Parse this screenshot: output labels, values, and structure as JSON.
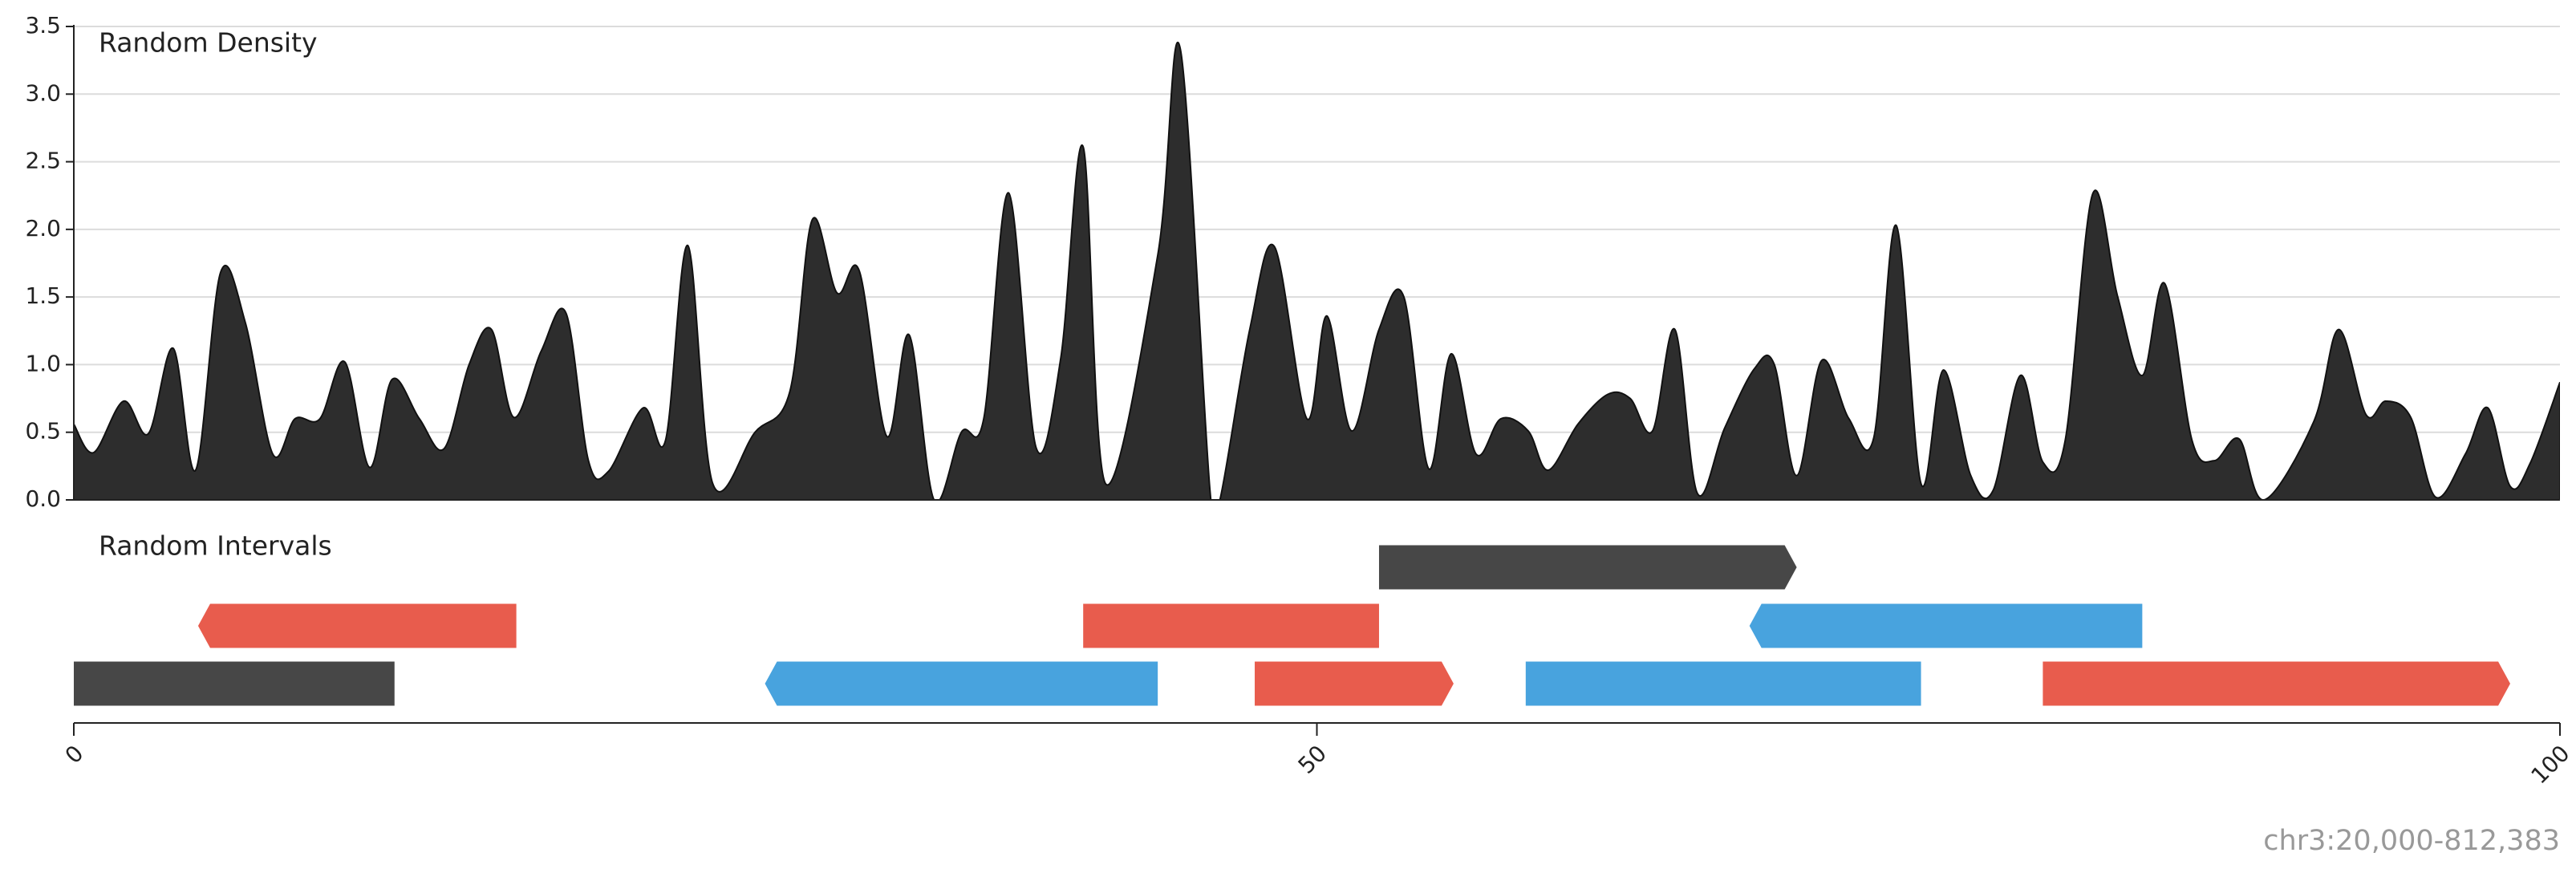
{
  "chart_data": {
    "type": "genome-tracks",
    "xlim": [
      0,
      100
    ],
    "xticks": [
      0,
      50,
      100
    ],
    "locus": "chr3:20,000-812,383",
    "tracks": [
      {
        "type": "area",
        "title": "Random Density",
        "color": "#2d2d2d",
        "ylim": [
          0,
          3.5
        ],
        "yticks": [
          {
            "value": 0,
            "label": "0.0"
          },
          0.5,
          {
            "value": 1,
            "label": "1.0"
          },
          1.5,
          {
            "value": 2,
            "label": "2.0"
          },
          2.5,
          {
            "value": 3,
            "label": "3.0"
          },
          3.5
        ],
        "grid": true,
        "x": [
          0,
          0.8,
          2.0,
          3.0,
          4.0,
          4.9,
          5.9,
          6.9,
          8.0,
          8.9,
          9.9,
          10.9,
          11.9,
          12.8,
          13.9,
          14.9,
          15.9,
          16.8,
          17.7,
          18.8,
          19.8,
          20.7,
          21.5,
          22.9,
          23.8,
          24.7,
          25.7,
          27.4,
          28.8,
          29.7,
          30.7,
          31.6,
          32.7,
          33.6,
          34.6,
          35.7,
          36.6,
          37.6,
          38.7,
          39.7,
          40.6,
          41.5,
          43.6,
          44.5,
          45.7,
          46.1,
          47.3,
          48.3,
          49.6,
          50.4,
          51.4,
          52.5,
          53.5,
          54.5,
          55.4,
          56.4,
          57.4,
          58.5,
          59.3,
          60.5,
          61.7,
          62.6,
          63.5,
          64.4,
          65.3,
          66.4,
          67.6,
          68.4,
          69.3,
          70.3,
          71.4,
          72.4,
          73.3,
          74.3,
          75.2,
          76.3,
          77.2,
          78.3,
          79.2,
          80.1,
          81.2,
          82.2,
          83.2,
          84.1,
          85.2,
          86.1,
          87.1,
          88.1,
          90.1,
          91.1,
          92.2,
          93.0,
          94.0,
          95.0,
          96.2,
          97.1,
          98.0,
          98.8,
          100
        ],
        "values": [
          0.56,
          0.35,
          0.73,
          0.49,
          1.12,
          0.22,
          1.68,
          1.31,
          0.34,
          0.6,
          0.6,
          1.02,
          0.24,
          0.89,
          0.6,
          0.38,
          1.0,
          1.26,
          0.61,
          1.1,
          1.38,
          0.29,
          0.21,
          0.68,
          0.44,
          1.88,
          0.12,
          0.5,
          0.8,
          2.07,
          1.53,
          1.69,
          0.47,
          1.22,
          0,
          0.5,
          0.6,
          2.27,
          0.39,
          1.05,
          2.61,
          0.12,
          1.81,
          3.34,
          0.07,
          0,
          1.26,
          1.87,
          0.6,
          1.36,
          0.51,
          1.26,
          1.5,
          0.23,
          1.08,
          0.34,
          0.6,
          0.51,
          0.22,
          0.56,
          0.78,
          0.75,
          0.51,
          1.26,
          0.05,
          0.53,
          0.97,
          1.0,
          0.18,
          1.03,
          0.6,
          0.46,
          2.03,
          0.12,
          0.96,
          0.18,
          0.07,
          0.92,
          0.28,
          0.44,
          2.26,
          1.51,
          0.92,
          1.6,
          0.44,
          0.29,
          0.45,
          0,
          0.58,
          1.26,
          0.63,
          0.73,
          0.61,
          0.02,
          0.34,
          0.68,
          0.1,
          0.27,
          0.87
        ]
      },
      {
        "type": "intervals",
        "title": "Random Intervals",
        "intervals": [
          {
            "start": 0,
            "end": 12.9,
            "strand": null,
            "color": "#474747"
          },
          {
            "start": 5.0,
            "end": 17.8,
            "strand": "-",
            "color": "#e85c4d"
          },
          {
            "start": 27.8,
            "end": 43.6,
            "strand": "-",
            "color": "#48a3de"
          },
          {
            "start": 40.6,
            "end": 52.5,
            "strand": null,
            "color": "#e85c4d"
          },
          {
            "start": 47.5,
            "end": 55.5,
            "strand": "+",
            "color": "#e85c4d"
          },
          {
            "start": 52.5,
            "end": 69.3,
            "strand": "+",
            "color": "#474747"
          },
          {
            "start": 58.4,
            "end": 74.3,
            "strand": null,
            "color": "#48a3de"
          },
          {
            "start": 67.4,
            "end": 83.2,
            "strand": "-",
            "color": "#48a3de"
          },
          {
            "start": 79.2,
            "end": 98.0,
            "strand": "+",
            "color": "#e85c4d"
          }
        ]
      }
    ]
  }
}
